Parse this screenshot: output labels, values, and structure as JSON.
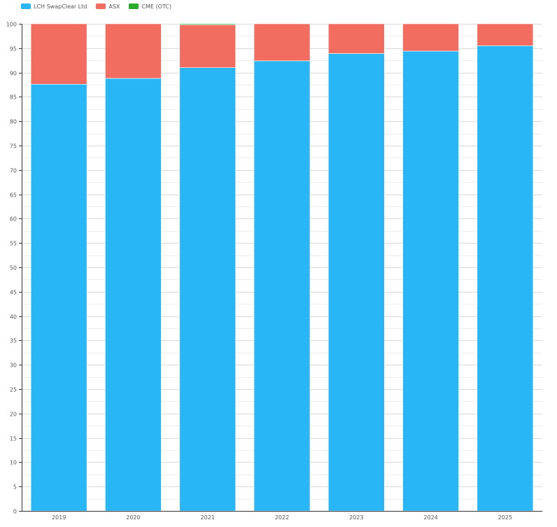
{
  "chart_data": {
    "type": "bar",
    "stacked": true,
    "categories": [
      "2019",
      "2020",
      "2021",
      "2022",
      "2023",
      "2024",
      "2025"
    ],
    "series": [
      {
        "name": "LCH SwapClear Ltd",
        "color": "#29b6f6",
        "values": [
          87.6,
          88.8,
          91.0,
          92.4,
          93.9,
          94.4,
          95.5
        ]
      },
      {
        "name": "ASX",
        "color": "#f26c60",
        "values": [
          12.4,
          11.2,
          8.8,
          7.6,
          6.1,
          5.6,
          4.5
        ]
      },
      {
        "name": "CME (OTC)",
        "color": "#2bab2b",
        "values": [
          0,
          0,
          0.2,
          0,
          0,
          0,
          0
        ]
      }
    ],
    "ylim": [
      0,
      100
    ],
    "yticks": [
      "0",
      "5",
      "10",
      "15",
      "20",
      "25",
      "30",
      "35",
      "40",
      "45",
      "50",
      "55",
      "60",
      "65",
      "70",
      "75",
      "80",
      "85",
      "90",
      "95",
      "100"
    ],
    "title": "",
    "xlabel": "",
    "ylabel": "",
    "grid": true,
    "legend_position": "top-left"
  }
}
